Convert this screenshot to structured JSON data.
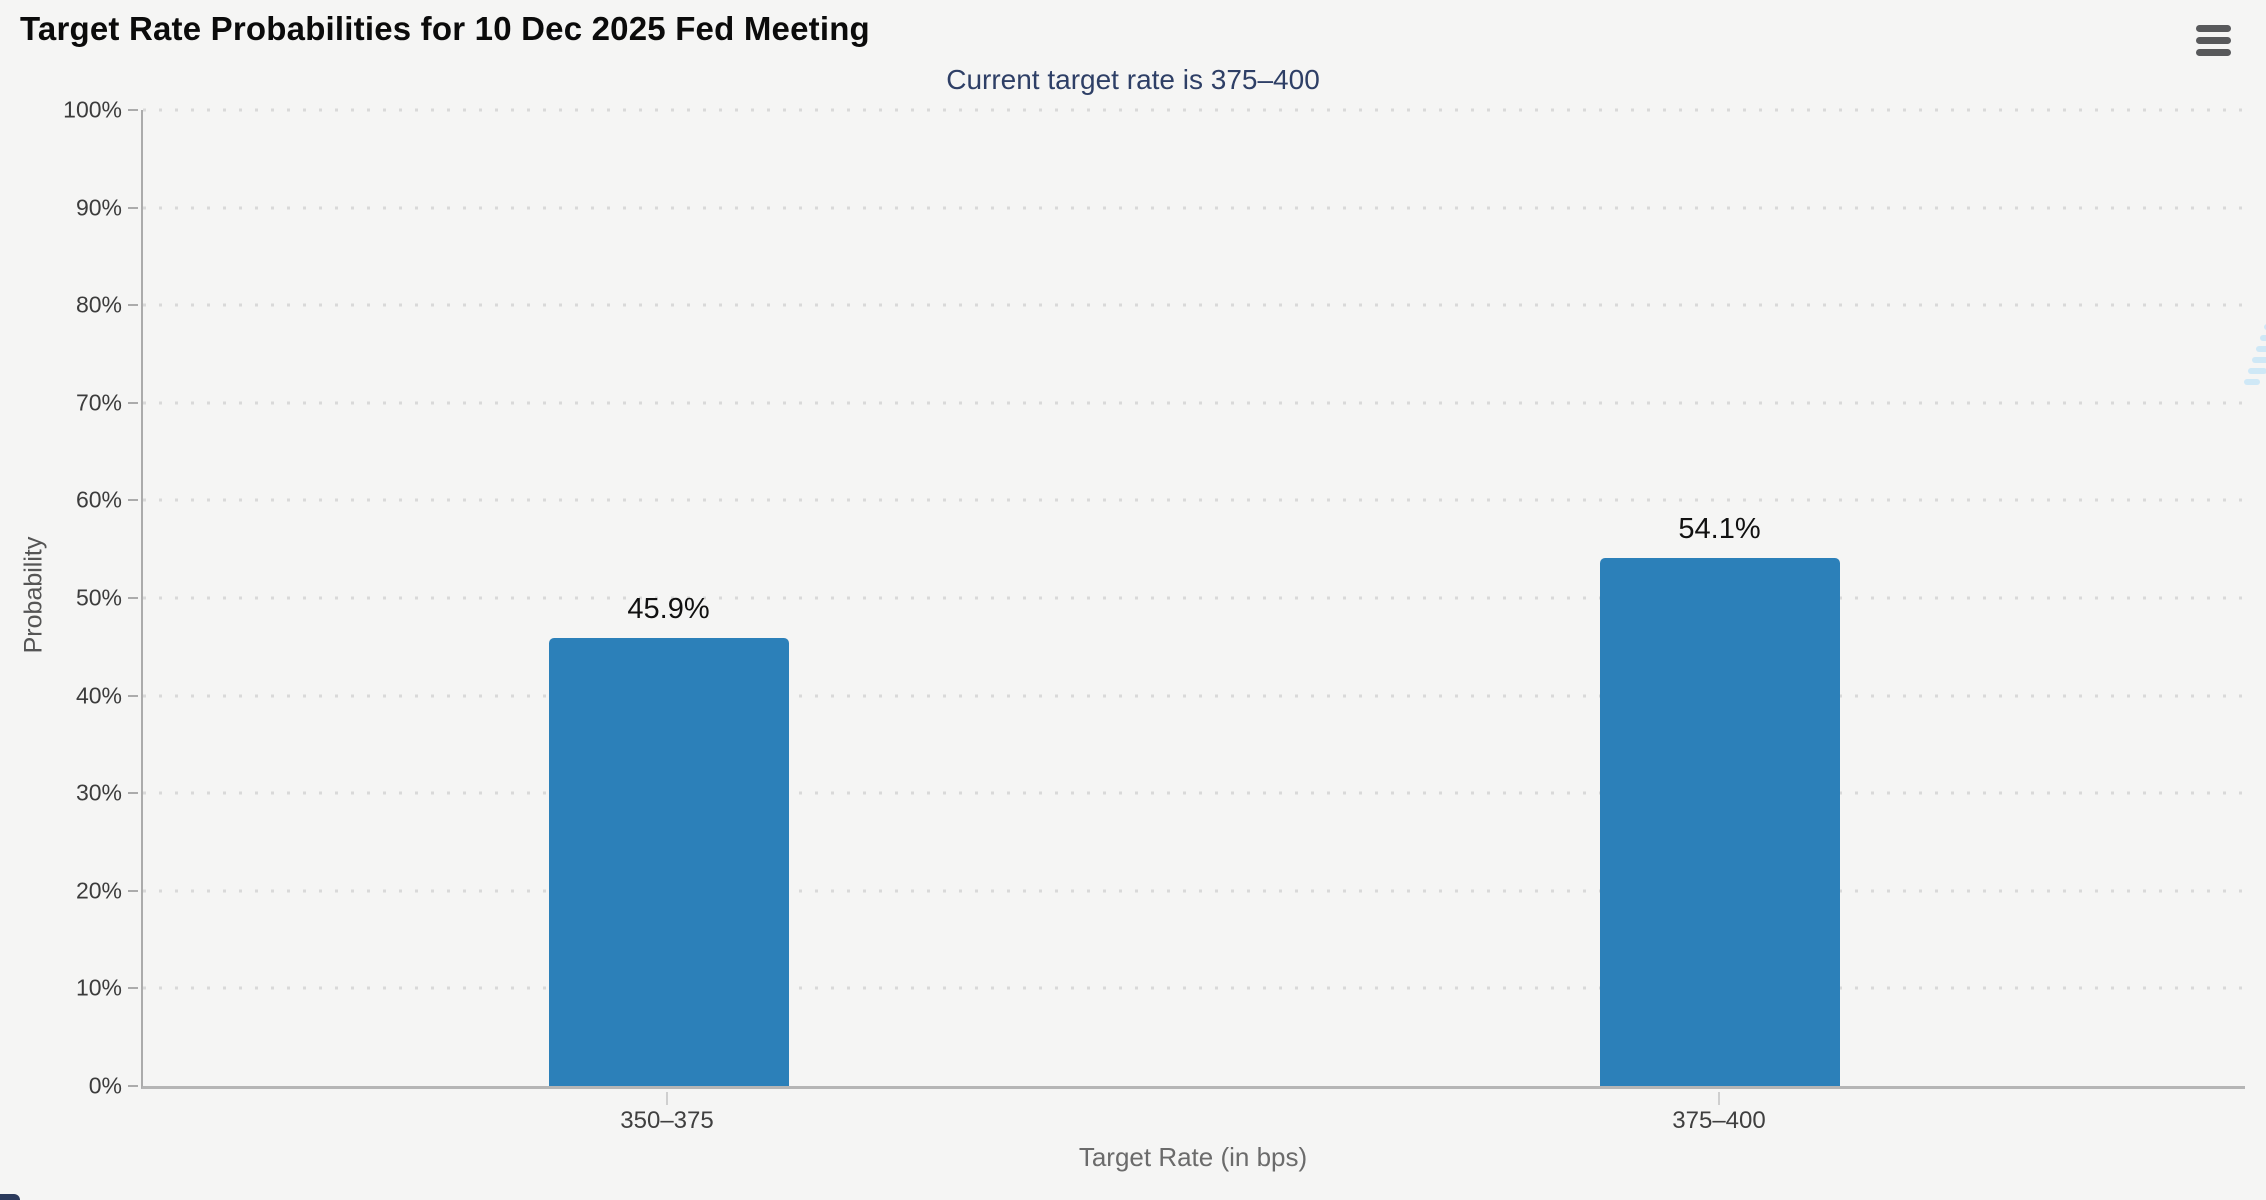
{
  "page": {
    "background": "#f5f5f4"
  },
  "watermark": {
    "letter": "Q"
  },
  "colors": {
    "bar": "#2c80b9",
    "subtitle_text": "#2e3f66",
    "title_text": "#0b0b0b",
    "y_axis_line": "#ababab",
    "x_axis_line": "#b5b5b5",
    "grid_dot": "#d9d9d9",
    "tick_label": "#3c3c3c",
    "axis_title": "#6b6b6b",
    "menu_icon": "#58595b",
    "watermark_gray": "#c0c0c0",
    "watermark_blue": "#cfe8f6",
    "corner_peek": "#2b3a5c"
  },
  "chart_data": {
    "type": "bar",
    "title": "Target Rate Probabilities for 10 Dec 2025 Fed Meeting",
    "subtitle": "Current target rate is 375–400",
    "xlabel": "Target Rate (in bps)",
    "ylabel": "Probability",
    "categories": [
      "350–375",
      "375–400"
    ],
    "values": [
      45.9,
      54.1
    ],
    "value_labels": [
      "45.9%",
      "54.1%"
    ],
    "ylim": [
      0,
      100
    ],
    "ytick_values": [
      0,
      10,
      20,
      30,
      40,
      50,
      60,
      70,
      80,
      90,
      100
    ],
    "ytick_labels": [
      "0%",
      "10%",
      "20%",
      "30%",
      "40%",
      "50%",
      "60%",
      "70%",
      "80%",
      "90%",
      "100%"
    ],
    "grid": "horizontal-dotted",
    "legend": "none",
    "bar_color": "#2c80b9"
  }
}
